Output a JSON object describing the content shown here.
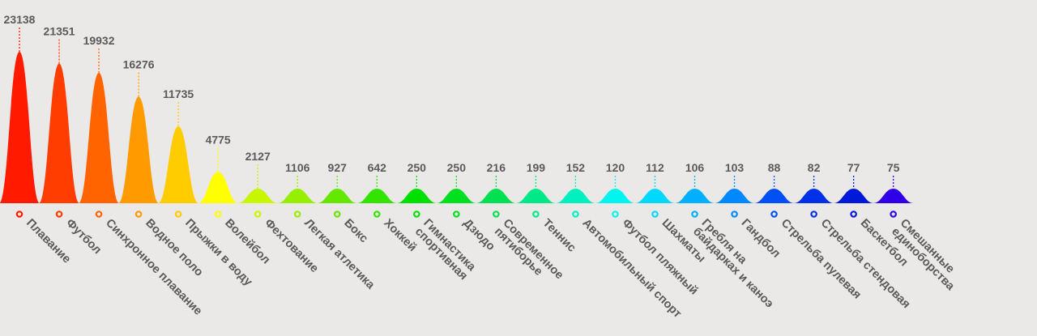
{
  "chart_data": {
    "type": "bar",
    "title": "",
    "xlabel": "",
    "ylabel": "",
    "ylim": [
      0,
      23138
    ],
    "grid": false,
    "legend": "none",
    "categories": [
      "Плавание",
      "Футбол",
      "Синхронное плавание",
      "Водное поло",
      "Прыжки в воду",
      "Волейбол",
      "Фехтование",
      "Легкая атлетика",
      "Бокс",
      "Хоккей",
      "Гимнастика\nспортивная",
      "Дзюдо",
      "Современное\nпятиборье",
      "Теннис",
      "Автомобильный спорт",
      "Футбол пляжный",
      "Шахматы",
      "Гребля на\nбайдарках и каноэ",
      "Гандбол",
      "Стрельба пулевая",
      "Стрельба стендовая",
      "Баскетбол",
      "Смешанные\nединоборства"
    ],
    "values": [
      23138,
      21351,
      19932,
      16276,
      11735,
      4775,
      2127,
      1106,
      927,
      642,
      250,
      250,
      216,
      199,
      152,
      120,
      112,
      106,
      103,
      88,
      82,
      77,
      75
    ],
    "value_labels": [
      "23138",
      "21351",
      "19932",
      "16276",
      "11735",
      "4775",
      "2127",
      "1106",
      "927",
      "642",
      "250",
      "250",
      "216",
      "199",
      "152",
      "120",
      "112",
      "106",
      "103",
      "88",
      "82",
      "77",
      "75"
    ],
    "colors": [
      "#ff1a00",
      "#ff3d00",
      "#ff6400",
      "#ff9a00",
      "#ffcc00",
      "#ffff00",
      "#c8f500",
      "#96ee00",
      "#64e800",
      "#32e400",
      "#00e000",
      "#00e020",
      "#00e050",
      "#00e888",
      "#00f0c0",
      "#00f5f0",
      "#00d8ff",
      "#00b0ff",
      "#0088ff",
      "#0050f5",
      "#0030e8",
      "#0018d8",
      "#3000e8"
    ]
  }
}
